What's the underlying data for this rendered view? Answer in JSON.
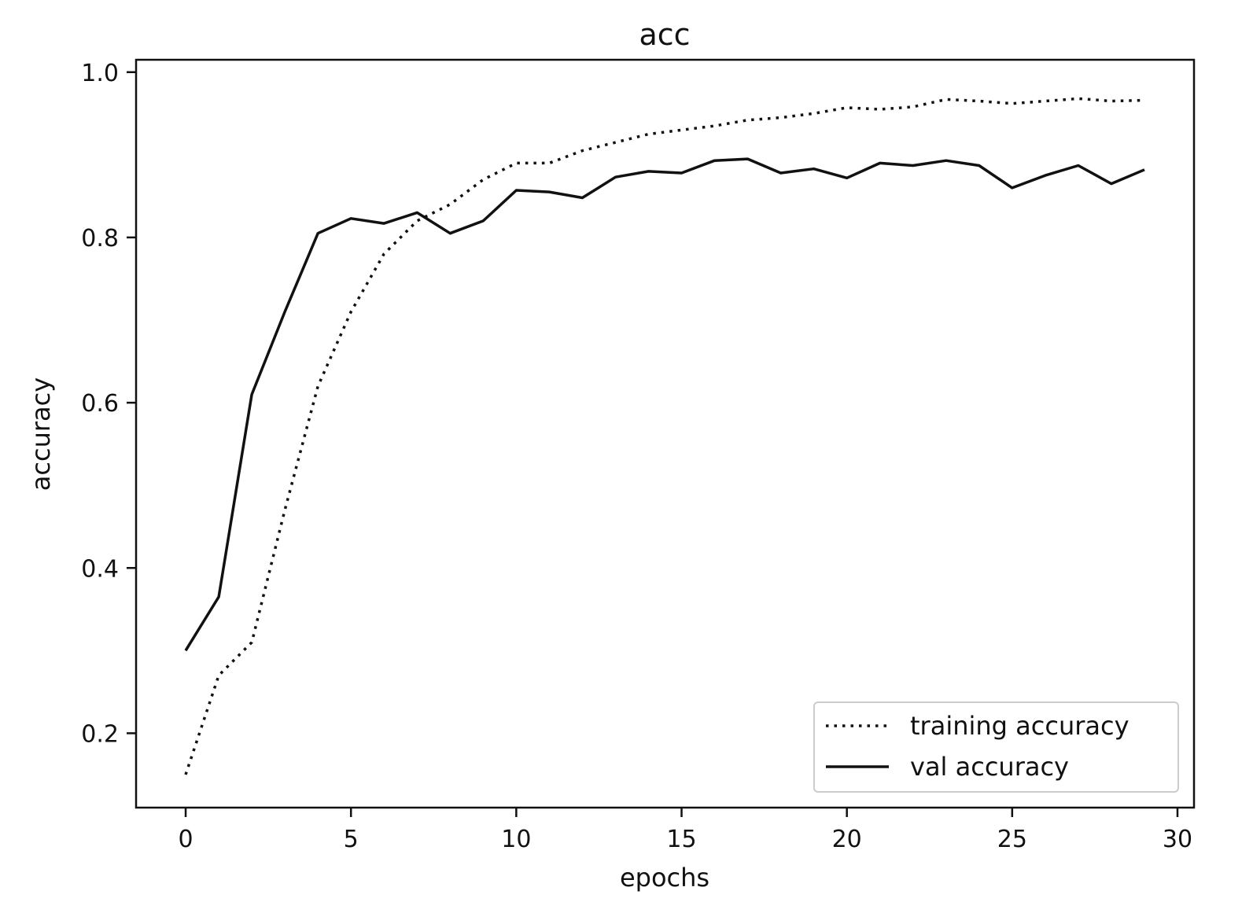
{
  "chart_data": {
    "type": "line",
    "title": "acc",
    "xlabel": "epochs",
    "ylabel": "accuracy",
    "xlim": [
      -1.5,
      30.5
    ],
    "ylim": [
      0.11,
      1.015
    ],
    "xticks": [
      0,
      5,
      10,
      15,
      20,
      25,
      30
    ],
    "xtick_labels": [
      "0",
      "5",
      "10",
      "15",
      "20",
      "25",
      "30"
    ],
    "yticks": [
      0.2,
      0.4,
      0.6,
      0.8,
      1.0
    ],
    "ytick_labels": [
      "0.2",
      "0.4",
      "0.6",
      "0.8",
      "1.0"
    ],
    "grid": false,
    "legend_position": "lower-right",
    "x": [
      0,
      1,
      2,
      3,
      4,
      5,
      6,
      7,
      8,
      9,
      10,
      11,
      12,
      13,
      14,
      15,
      16,
      17,
      18,
      19,
      20,
      21,
      22,
      23,
      24,
      25,
      26,
      27,
      28,
      29
    ],
    "series": [
      {
        "name": "training accuracy",
        "style": "dotted",
        "color": "#111111",
        "values": [
          0.15,
          0.27,
          0.31,
          0.47,
          0.62,
          0.71,
          0.78,
          0.82,
          0.84,
          0.87,
          0.89,
          0.89,
          0.905,
          0.915,
          0.925,
          0.93,
          0.935,
          0.942,
          0.945,
          0.95,
          0.957,
          0.955,
          0.958,
          0.967,
          0.965,
          0.962,
          0.965,
          0.968,
          0.965,
          0.966
        ]
      },
      {
        "name": "val accuracy",
        "style": "solid",
        "color": "#111111",
        "values": [
          0.3,
          0.365,
          0.61,
          0.71,
          0.805,
          0.823,
          0.817,
          0.83,
          0.805,
          0.82,
          0.857,
          0.855,
          0.848,
          0.873,
          0.88,
          0.878,
          0.893,
          0.895,
          0.878,
          0.883,
          0.872,
          0.89,
          0.887,
          0.893,
          0.887,
          0.86,
          0.875,
          0.887,
          0.865,
          0.882
        ]
      }
    ]
  }
}
